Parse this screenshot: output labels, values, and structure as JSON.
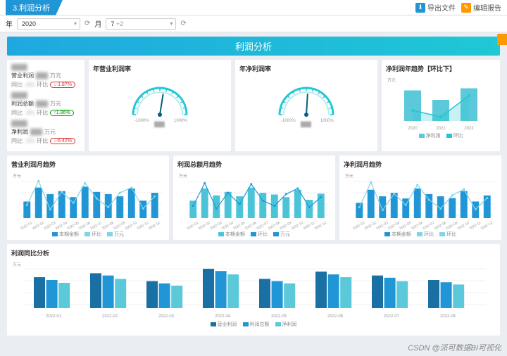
{
  "header": {
    "title": "3.利润分析",
    "export": "导出文件",
    "edit": "编辑报告"
  },
  "filters": {
    "yearLabel": "年",
    "year": "2020",
    "monthLabel": "月",
    "month": "7",
    "monthExtra": "+2"
  },
  "banner": "利润分析",
  "colors": {
    "primary": "#2196d6",
    "teal": "#1fc8d4",
    "light": "#7fd4e8",
    "dark": "#1a6fa3",
    "orange": "#ff9800",
    "grid": "#eef0f2",
    "axis": "#999"
  },
  "kpi": [
    {
      "label": "营业利润",
      "unit": "万元",
      "yoy": "同比",
      "yv": "-6%",
      "mom": "环比",
      "mv": "↓-1.87%",
      "mc": "g"
    },
    {
      "label": "利润总额",
      "unit": "万元",
      "yoy": "同比",
      "yv": "-9%",
      "mom": "环比",
      "mv": "↑1.86%",
      "mc": "r"
    },
    {
      "label": "净利润",
      "unit": "万元",
      "yoy": "同比",
      "yv": "-2%",
      "mom": "环比",
      "mv": "↓-6.42%",
      "mc": "g"
    }
  ],
  "gauges": [
    {
      "title": "年营业利润率",
      "min": "-1000%",
      "max": "1000%",
      "ticks": [
        "1000%",
        "-1000%"
      ],
      "value": 0.55
    },
    {
      "title": "年净利润率",
      "min": "-1000%",
      "max": "1000%",
      "ticks": [
        "1000%",
        "-1000%"
      ],
      "value": 0.52
    }
  ],
  "yearTrend": {
    "title": "净利润年趋势【环比下】",
    "yunit": "万元",
    "categories": [
      "2020",
      "2021",
      "2022"
    ],
    "bars": [
      58,
      40,
      62
    ],
    "line": [
      20,
      8,
      48
    ],
    "barColor": "#5bc9d9",
    "lineColor": "#1fc8d4",
    "legend": [
      "净利润",
      "环比"
    ]
  },
  "monthTrends": [
    {
      "title": "营业利润月趋势",
      "yunit": "万元",
      "cats": [
        "2022-01",
        "2022-02",
        "2022-03",
        "2022-04",
        "2022-05",
        "2022-06",
        "2022-07",
        "2022-08",
        "2022-09",
        "2022-10",
        "2022-11",
        "2022-12"
      ],
      "bars": [
        38,
        70,
        55,
        62,
        48,
        72,
        60,
        55,
        50,
        68,
        40,
        58
      ],
      "line": [
        30,
        85,
        20,
        60,
        35,
        80,
        45,
        25,
        58,
        70,
        22,
        50
      ],
      "barColor": "#2196d6",
      "lineColor": "#7fd4e8",
      "legend": [
        "本期金额",
        "环比",
        "万元"
      ]
    },
    {
      "title": "利润总额月趋势",
      "yunit": "万元",
      "cats": [
        "2022-01",
        "2022-02",
        "2022-03",
        "2022-04",
        "2022-05",
        "2022-06",
        "2022-07",
        "2022-08",
        "2022-09",
        "2022-10",
        "2022-11",
        "2022-12"
      ],
      "bars": [
        40,
        68,
        52,
        60,
        50,
        70,
        58,
        54,
        48,
        65,
        42,
        56
      ],
      "line": [
        28,
        80,
        22,
        58,
        32,
        78,
        40,
        28,
        55,
        68,
        25,
        48
      ],
      "barColor": "#4cc4d8",
      "lineColor": "#2196d6",
      "legend": [
        "本期金额",
        "环比",
        "万元"
      ]
    },
    {
      "title": "净利润月趋势",
      "yunit": "万元",
      "cats": [
        "2022-01",
        "2022-02",
        "2022-03",
        "2022-04",
        "2022-05",
        "2022-06",
        "2022-07",
        "2022-08",
        "2022-09",
        "2022-10",
        "2022-11",
        "2022-12"
      ],
      "bars": [
        35,
        65,
        50,
        58,
        45,
        68,
        55,
        50,
        46,
        62,
        38,
        52
      ],
      "line": [
        25,
        82,
        18,
        56,
        30,
        76,
        42,
        22,
        52,
        66,
        20,
        46
      ],
      "barColor": "#2196d6",
      "lineColor": "#7fd4e8",
      "legend": [
        "本期金额",
        "环比",
        "环比"
      ]
    }
  ],
  "compare": {
    "title": "利润同比分析",
    "yunit": "万元",
    "cats": [
      "2022-01",
      "2022-02",
      "2022-03",
      "2022-04",
      "2022-05",
      "2022-06",
      "2022-07",
      "2022-08"
    ],
    "series": [
      {
        "name": "营业利润",
        "color": "#1a6fa3",
        "vals": [
          55,
          62,
          48,
          70,
          52,
          65,
          58,
          50
        ]
      },
      {
        "name": "利润总额",
        "color": "#2196d6",
        "vals": [
          50,
          58,
          44,
          66,
          48,
          60,
          54,
          46
        ]
      },
      {
        "name": "净利润",
        "color": "#5bc9d9",
        "vals": [
          45,
          52,
          40,
          60,
          44,
          55,
          48,
          42
        ]
      }
    ]
  },
  "watermark": "CSDN @派可数据BI可视化"
}
